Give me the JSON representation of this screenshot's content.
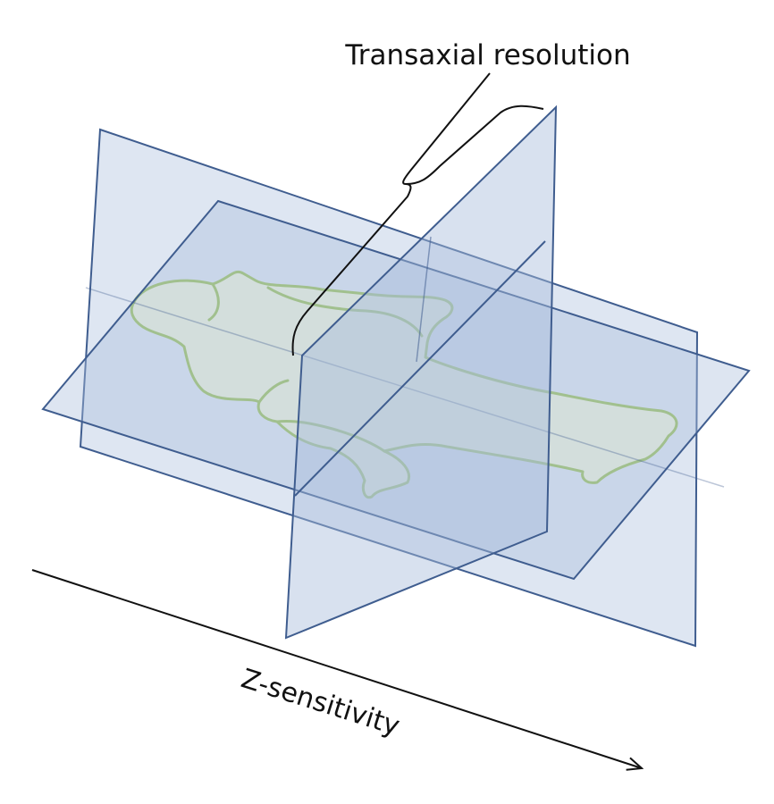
{
  "labels": {
    "transaxial": "Transaxial resolution",
    "z_sensitivity": "Z-sensitivity"
  },
  "colors": {
    "plane_fill": "#a9bddc",
    "plane_stroke": "#3f5d8f",
    "body_fill": "#eef3dd",
    "body_stroke": "#9cc25b",
    "line": "#111111"
  }
}
